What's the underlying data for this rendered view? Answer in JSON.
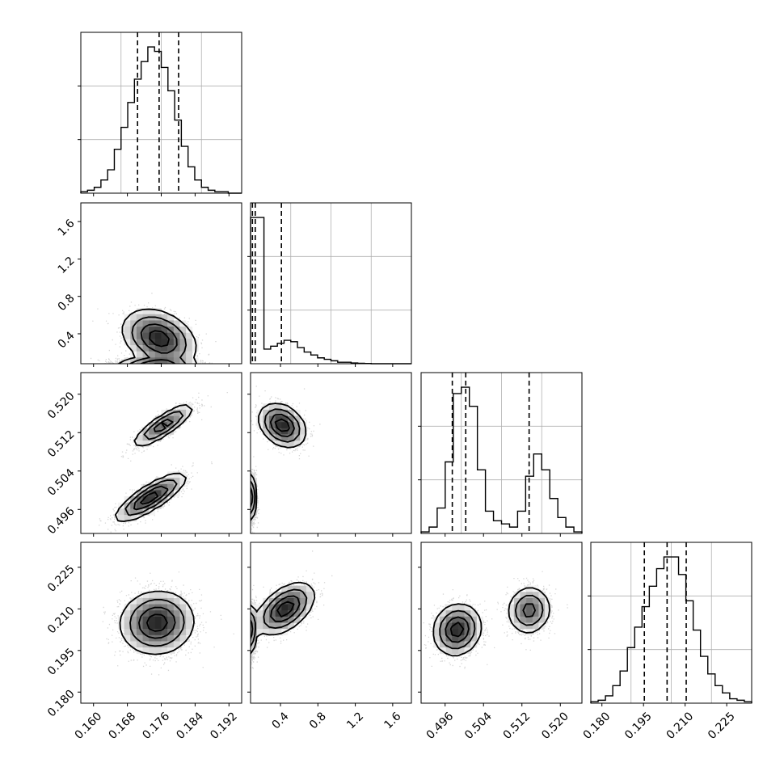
{
  "chart_data": {
    "type": "corner",
    "grid": true,
    "params": [
      {
        "range": [
          0.157,
          0.195
        ],
        "ticks": [
          "0.160",
          "0.168",
          "0.176",
          "0.184",
          "0.192"
        ],
        "quantiles": [
          0.1704,
          0.1755,
          0.1801
        ]
      },
      {
        "range": [
          0.08,
          1.8
        ],
        "ticks": [
          "0.4",
          "0.8",
          "1.2",
          "1.6"
        ],
        "quantiles": [
          0.1,
          0.13,
          0.41
        ]
      },
      {
        "range": [
          0.491,
          0.5245
        ],
        "ticks": [
          "0.496",
          "0.504",
          "0.512",
          "0.520"
        ],
        "quantiles": [
          0.4975,
          0.5003,
          0.5135
        ]
      },
      {
        "range": [
          0.176,
          0.234
        ],
        "ticks": [
          "0.180",
          "0.195",
          "0.210",
          "0.225"
        ],
        "quantiles": [
          0.1953,
          0.2035,
          0.2104
        ]
      }
    ],
    "histograms": [
      {
        "values": [
          1,
          2,
          4,
          9,
          16,
          30,
          45,
          62,
          78,
          90,
          100,
          97,
          86,
          70,
          50,
          32,
          18,
          9,
          4,
          2,
          1,
          1,
          0,
          0
        ]
      },
      {
        "values": [
          100,
          100,
          10,
          12,
          14,
          16,
          15,
          11,
          8,
          6,
          4,
          3,
          2,
          1,
          1,
          0.5,
          0.3,
          0.2,
          0,
          0,
          0,
          0,
          0,
          0
        ]
      },
      {
        "values": [
          1,
          4,
          16,
          45,
          88,
          92,
          80,
          40,
          14,
          8,
          6,
          4,
          14,
          36,
          50,
          40,
          22,
          10,
          4,
          1
        ]
      },
      {
        "values": [
          1,
          2,
          5,
          12,
          22,
          38,
          52,
          66,
          80,
          92,
          100,
          100,
          88,
          70,
          50,
          32,
          20,
          12,
          7,
          3,
          2,
          1
        ]
      }
    ],
    "pairs": [
      {
        "row": 1,
        "col": 0,
        "modes": [
          {
            "cx": 0.1755,
            "cy": 0.35,
            "sx": 0.0042,
            "sy": 0.15,
            "rho": -0.3,
            "w": 0.45
          },
          {
            "cx": 0.1745,
            "cy": 0.1,
            "sx": 0.0045,
            "sy": 0.02,
            "rho": 0,
            "w": 0.55
          }
        ]
      },
      {
        "row": 2,
        "col": 0,
        "modes": [
          {
            "cx": 0.1765,
            "cy": 0.5135,
            "sx": 0.0035,
            "sy": 0.0022,
            "rho": 0.85,
            "w": 0.42
          },
          {
            "cx": 0.1735,
            "cy": 0.4985,
            "sx": 0.004,
            "sy": 0.0024,
            "rho": 0.82,
            "w": 0.58
          }
        ]
      },
      {
        "row": 2,
        "col": 1,
        "modes": [
          {
            "cx": 0.42,
            "cy": 0.5135,
            "sx": 0.12,
            "sy": 0.0022,
            "rho": -0.3,
            "w": 0.42
          },
          {
            "cx": 0.1,
            "cy": 0.4985,
            "sx": 0.02,
            "sy": 0.0024,
            "rho": 0,
            "w": 0.58
          }
        ]
      },
      {
        "row": 3,
        "col": 0,
        "modes": [
          {
            "cx": 0.175,
            "cy": 0.205,
            "sx": 0.0042,
            "sy": 0.0055,
            "rho": 0.05,
            "w": 1.0
          }
        ]
      },
      {
        "row": 3,
        "col": 1,
        "modes": [
          {
            "cx": 0.45,
            "cy": 0.21,
            "sx": 0.15,
            "sy": 0.0045,
            "rho": 0.5,
            "w": 0.42
          },
          {
            "cx": 0.1,
            "cy": 0.2025,
            "sx": 0.02,
            "sy": 0.0045,
            "rho": 0,
            "w": 0.58
          }
        ]
      },
      {
        "row": 3,
        "col": 2,
        "modes": [
          {
            "cx": 0.4985,
            "cy": 0.2025,
            "sx": 0.0024,
            "sy": 0.0045,
            "rho": 0.1,
            "w": 0.58
          },
          {
            "cx": 0.5135,
            "cy": 0.2095,
            "sx": 0.0022,
            "sy": 0.0042,
            "rho": 0.05,
            "w": 0.42
          }
        ]
      }
    ]
  }
}
